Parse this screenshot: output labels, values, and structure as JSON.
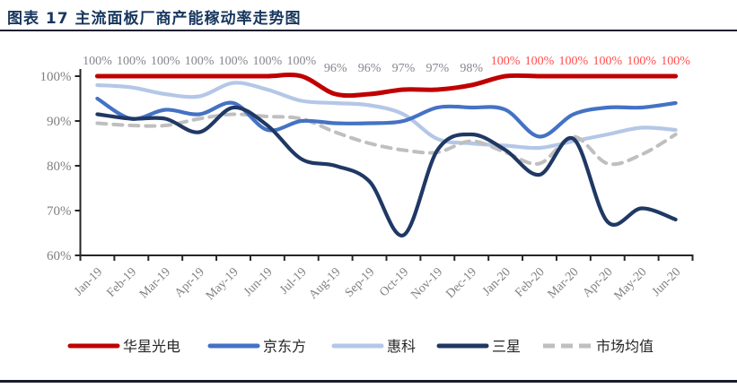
{
  "page": {
    "title": "图表 17 主流面板厂商产能稼动率走势图"
  },
  "chart_data": {
    "type": "line",
    "title": "主流面板厂商产能稼动率走势图",
    "categories": [
      "Jan-19",
      "Feb-19",
      "Mar-19",
      "Apr-19",
      "May-19",
      "Jun-19",
      "Jul-19",
      "Aug-19",
      "Sep-19",
      "Oct-19",
      "Nov-19",
      "Dec-19",
      "Jan-20",
      "Feb-20",
      "Mar-20",
      "Apr-20",
      "May-20",
      "Jun-20"
    ],
    "series": [
      {
        "name": "华星光电",
        "color": "#C00000",
        "dashed": false,
        "values": [
          100,
          100,
          100,
          100,
          100,
          100,
          100,
          96,
          96,
          97,
          97,
          98,
          100,
          100,
          100,
          100,
          100,
          100
        ],
        "point_labels": [
          "100%",
          "100%",
          "100%",
          "100%",
          "100%",
          "100%",
          "100%",
          "96%",
          "96%",
          "97%",
          "97%",
          "98%",
          "100%",
          "100%",
          "100%",
          "100%",
          "100%",
          "100%"
        ],
        "point_label_colors": [
          "#85868f",
          "#85868f",
          "#85868f",
          "#85868f",
          "#85868f",
          "#85868f",
          "#85868f",
          "#85868f",
          "#85868f",
          "#85868f",
          "#85868f",
          "#85868f",
          "#ff4d4d",
          "#ff4d4d",
          "#ff4d4d",
          "#ff4d4d",
          "#ff4d4d",
          "#ff4d4d"
        ]
      },
      {
        "name": "京东方",
        "color": "#4472C4",
        "dashed": false,
        "values": [
          95,
          90.5,
          92.5,
          91.5,
          94,
          88,
          90,
          89.5,
          89.5,
          90,
          93,
          93,
          92.5,
          86.5,
          91.5,
          93,
          93,
          94
        ]
      },
      {
        "name": "惠科",
        "color": "#B4C7E7",
        "dashed": false,
        "values": [
          98,
          97.5,
          96,
          95.5,
          98.5,
          97,
          94.5,
          94,
          93.5,
          91.5,
          86,
          85,
          84.5,
          84,
          85.5,
          87,
          88.5,
          88
        ]
      },
      {
        "name": "三星",
        "color": "#1F3864",
        "dashed": false,
        "values": [
          91.5,
          90.5,
          90.5,
          87.5,
          93,
          89,
          81.5,
          80,
          76.5,
          64.5,
          83.5,
          87,
          83.5,
          78,
          86,
          67.5,
          70.5,
          68
        ]
      },
      {
        "name": "市场均值",
        "color": "#BFBFBF",
        "dashed": true,
        "values": [
          89.5,
          89,
          89,
          90.5,
          91.5,
          91,
          90.5,
          87.5,
          85,
          83.5,
          83,
          85.5,
          83,
          80.5,
          86.5,
          80.5,
          82.5,
          87
        ]
      }
    ],
    "ylim": [
      60,
      100
    ],
    "ytick_step": 10,
    "ytick_suffix": "%",
    "grid": false,
    "legend_position": "bottom",
    "axis_text_color": "#808080",
    "axis_line_color": "#262626"
  }
}
